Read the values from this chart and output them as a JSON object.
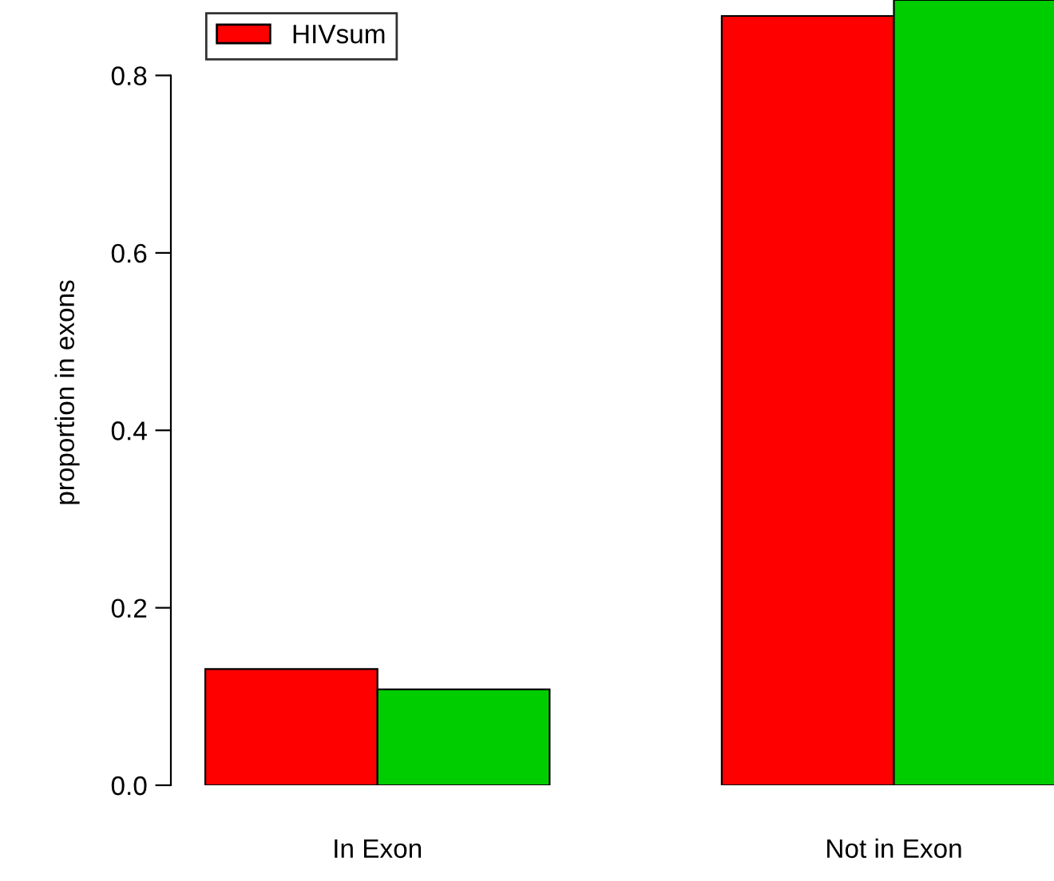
{
  "chart_data": {
    "type": "bar",
    "ylabel": "proportion in exons",
    "categories": [
      "In Exon",
      "Not in Exon"
    ],
    "series": [
      {
        "name": "HIVsum",
        "color": "#ff0000",
        "values": [
          0.131,
          0.867
        ]
      },
      {
        "color": "#00cd00",
        "values": [
          0.108,
          0.885
        ]
      }
    ],
    "ylim": [
      0,
      0.885
    ],
    "yticks": [
      {
        "value": 0,
        "label": "0.0"
      },
      0.2,
      0.4,
      0.6,
      0.8
    ],
    "grid": false,
    "legend": "top left"
  }
}
